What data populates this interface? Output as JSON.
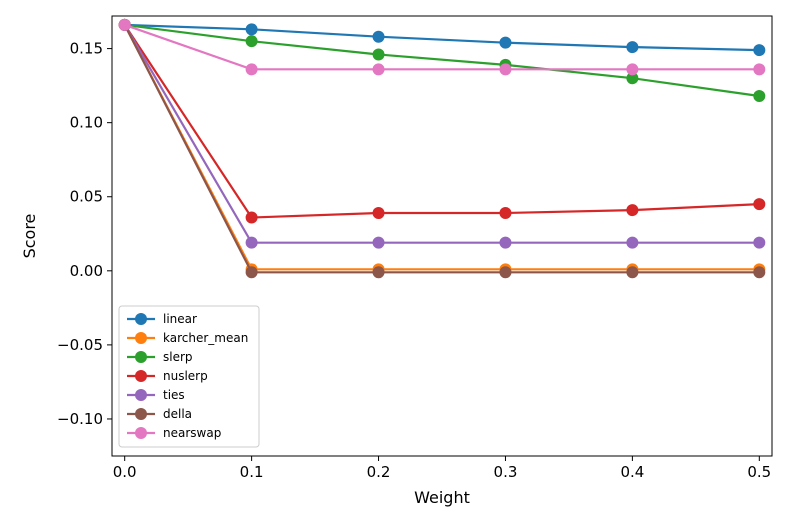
{
  "chart_data": {
    "type": "line",
    "title": "",
    "xlabel": "Weight",
    "ylabel": "Score",
    "x": [
      0.0,
      0.1,
      0.2,
      0.3,
      0.4,
      0.5
    ],
    "xlim": [
      -0.01,
      0.51
    ],
    "ylim": [
      -0.125,
      0.172
    ],
    "xticks": [
      0.0,
      0.1,
      0.2,
      0.3,
      0.4,
      0.5
    ],
    "xtick_labels": [
      "0.0",
      "0.1",
      "0.2",
      "0.3",
      "0.4",
      "0.5"
    ],
    "yticks": [
      -0.1,
      -0.05,
      0.0,
      0.05,
      0.1,
      0.15
    ],
    "ytick_labels": [
      "−0.10",
      "−0.05",
      "0.00",
      "0.05",
      "0.10",
      "0.15"
    ],
    "grid": false,
    "legend_position": "lower-left",
    "series": [
      {
        "name": "linear",
        "color": "#1f77b4",
        "values": [
          0.166,
          0.163,
          0.158,
          0.154,
          0.151,
          0.149
        ]
      },
      {
        "name": "karcher_mean",
        "color": "#ff7f0e",
        "values": [
          0.166,
          0.001,
          0.001,
          0.001,
          0.001,
          0.001
        ]
      },
      {
        "name": "slerp",
        "color": "#2ca02c",
        "values": [
          0.166,
          0.155,
          0.146,
          0.139,
          0.13,
          0.118
        ]
      },
      {
        "name": "nuslerp",
        "color": "#d62728",
        "values": [
          0.166,
          0.036,
          0.039,
          0.039,
          0.041,
          0.045
        ]
      },
      {
        "name": "ties",
        "color": "#9467bd",
        "values": [
          0.166,
          0.019,
          0.019,
          0.019,
          0.019,
          0.019
        ]
      },
      {
        "name": "della",
        "color": "#8c564b",
        "values": [
          0.166,
          -0.001,
          -0.001,
          -0.001,
          -0.001,
          -0.001
        ]
      },
      {
        "name": "nearswap",
        "color": "#e377c2",
        "values": [
          0.166,
          0.136,
          0.136,
          0.136,
          0.136,
          0.136
        ]
      }
    ]
  }
}
